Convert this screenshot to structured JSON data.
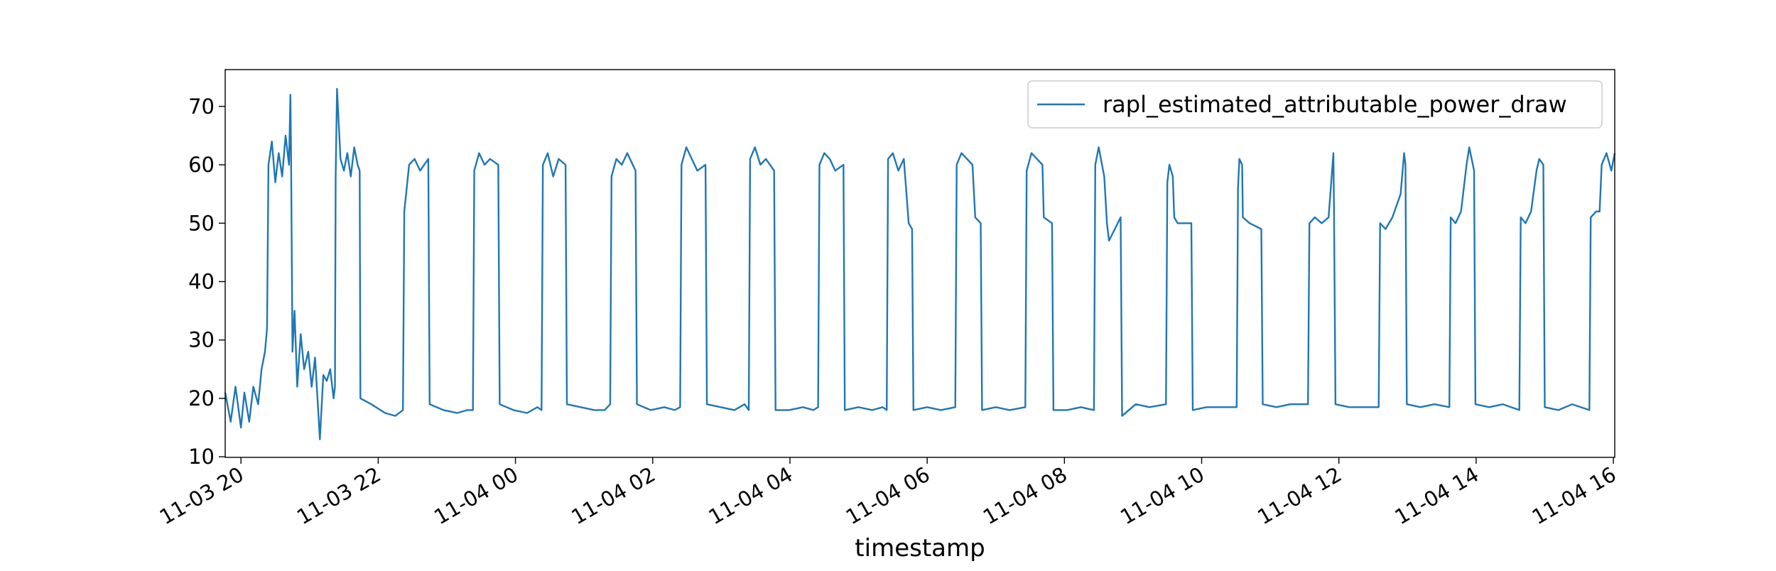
{
  "chart_data": {
    "type": "line",
    "xlabel": "timestamp",
    "legend": "upper right",
    "grid": false,
    "xlim": [
      19.77,
      40.02
    ],
    "xticks": [
      {
        "value": 20,
        "label": "11-03 20"
      },
      {
        "value": 22,
        "label": "11-03 22"
      },
      {
        "value": 24,
        "label": "11-04 00"
      },
      {
        "value": 26,
        "label": "11-04 02"
      },
      {
        "value": 28,
        "label": "11-04 04"
      },
      {
        "value": 30,
        "label": "11-04 06"
      },
      {
        "value": 32,
        "label": "11-04 08"
      },
      {
        "value": 34,
        "label": "11-04 10"
      },
      {
        "value": 36,
        "label": "11-04 12"
      },
      {
        "value": 38,
        "label": "11-04 14"
      },
      {
        "value": 40,
        "label": "11-04 16"
      }
    ],
    "ylim": [
      9.9,
      76.3
    ],
    "yticks": [
      10,
      20,
      30,
      40,
      50,
      60,
      70
    ],
    "x": [
      19.77,
      19.85,
      19.92,
      20.0,
      20.05,
      20.12,
      20.18,
      20.25,
      20.3,
      20.35,
      20.38,
      20.4,
      20.45,
      20.5,
      20.55,
      20.6,
      20.65,
      20.7,
      20.72,
      20.73,
      20.75,
      20.78,
      20.82,
      20.87,
      20.92,
      20.98,
      21.03,
      21.08,
      21.15,
      21.2,
      21.25,
      21.3,
      21.35,
      21.37,
      21.38,
      21.4,
      21.45,
      21.5,
      21.55,
      21.6,
      21.65,
      21.7,
      21.73,
      21.74,
      21.9,
      22.1,
      22.25,
      22.36,
      22.38,
      22.45,
      22.53,
      22.61,
      22.73,
      22.75,
      22.95,
      23.15,
      23.3,
      23.38,
      23.4,
      23.47,
      23.55,
      23.63,
      23.75,
      23.77,
      23.97,
      24.17,
      24.32,
      24.38,
      24.4,
      24.47,
      24.55,
      24.63,
      24.73,
      24.75,
      24.95,
      25.15,
      25.3,
      25.38,
      25.4,
      25.47,
      25.55,
      25.63,
      25.75,
      25.77,
      25.97,
      26.17,
      26.32,
      26.4,
      26.42,
      26.49,
      26.57,
      26.65,
      26.77,
      26.79,
      26.99,
      27.19,
      27.34,
      27.4,
      27.42,
      27.49,
      27.57,
      27.65,
      27.77,
      27.79,
      27.99,
      28.19,
      28.34,
      28.41,
      28.43,
      28.5,
      28.58,
      28.66,
      28.78,
      28.8,
      29.0,
      29.2,
      29.35,
      29.41,
      29.43,
      29.5,
      29.58,
      29.66,
      29.73,
      29.78,
      29.8,
      30.0,
      30.2,
      30.41,
      30.43,
      30.5,
      30.58,
      30.66,
      30.7,
      30.78,
      30.8,
      31.0,
      31.2,
      31.43,
      31.45,
      31.52,
      31.6,
      31.68,
      31.7,
      31.82,
      31.84,
      32.04,
      32.24,
      32.43,
      32.45,
      32.5,
      32.58,
      32.62,
      32.65,
      32.82,
      32.84,
      33.04,
      33.24,
      33.48,
      33.5,
      33.53,
      33.58,
      33.6,
      33.65,
      33.85,
      33.87,
      34.07,
      34.27,
      34.51,
      34.53,
      34.55,
      34.59,
      34.6,
      34.7,
      34.87,
      34.89,
      35.09,
      35.29,
      35.55,
      35.57,
      35.65,
      35.75,
      35.85,
      35.92,
      35.93,
      35.95,
      36.15,
      36.35,
      36.58,
      36.6,
      36.68,
      36.78,
      36.9,
      36.95,
      36.97,
      36.99,
      37.19,
      37.39,
      37.61,
      37.63,
      37.7,
      37.78,
      37.86,
      37.9,
      37.97,
      37.99,
      38.19,
      38.39,
      38.63,
      38.65,
      38.72,
      38.8,
      38.88,
      38.92,
      38.98,
      39.0,
      39.2,
      39.4,
      39.65,
      39.67,
      39.75,
      39.8,
      39.83,
      39.9,
      39.97,
      40.02
    ],
    "series": [
      {
        "name": "rapl_estimated_attributable_power_draw",
        "color": "#1f77b4",
        "values": [
          21,
          16,
          22,
          15,
          21,
          16,
          22,
          19,
          25,
          28,
          32,
          60,
          64,
          57,
          62,
          58,
          65,
          60,
          72,
          62,
          28,
          35,
          22,
          31,
          25,
          28,
          22,
          27,
          13,
          24,
          23,
          25,
          20,
          22,
          58,
          73,
          61,
          59,
          62,
          58,
          63,
          60,
          59,
          20,
          19,
          17.5,
          17,
          18,
          52,
          60,
          61,
          59,
          61,
          19,
          18,
          17.5,
          18,
          18,
          59,
          62,
          60,
          61,
          60,
          19,
          18,
          17.5,
          18.5,
          18,
          60,
          62,
          58,
          61,
          60,
          19,
          18.5,
          18,
          18,
          19,
          58,
          61,
          60,
          62,
          59,
          19,
          18,
          18.5,
          18,
          18.5,
          60,
          63,
          61,
          59,
          60,
          19,
          18.5,
          18,
          19,
          18,
          61,
          63,
          60,
          61,
          59,
          18,
          18,
          18.5,
          18,
          18.5,
          60,
          62,
          61,
          59,
          60,
          18,
          18.5,
          18,
          18.5,
          18,
          61,
          62,
          59,
          61,
          50,
          49,
          18,
          18.5,
          18,
          18.5,
          60,
          62,
          61,
          60,
          51,
          50,
          18,
          18.5,
          18,
          18.5,
          59,
          62,
          61,
          60,
          51,
          50,
          18,
          18,
          18.5,
          18,
          60,
          63,
          58,
          50,
          47,
          51,
          17,
          19,
          18.5,
          19,
          57,
          60,
          58,
          51,
          50,
          50,
          18,
          18.5,
          18.5,
          18.5,
          56,
          61,
          60,
          51,
          50,
          49,
          19,
          18.5,
          19,
          19,
          50,
          51,
          50,
          51,
          62,
          51,
          19,
          18.5,
          18.5,
          18.5,
          50,
          49,
          51,
          55,
          62,
          60,
          19,
          18.5,
          19,
          18.5,
          51,
          50,
          52,
          60,
          63,
          59,
          19,
          18.5,
          19,
          18,
          51,
          50,
          52,
          59,
          61,
          60,
          18.5,
          18,
          19,
          18,
          51,
          52,
          52,
          60,
          62,
          59,
          62
        ]
      }
    ]
  }
}
